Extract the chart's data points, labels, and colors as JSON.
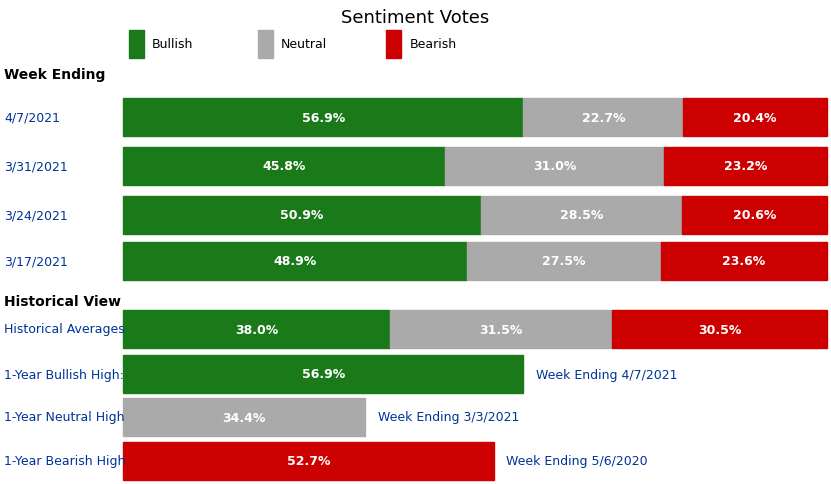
{
  "title": "Sentiment Votes",
  "colors": {
    "bullish": "#1a7a1a",
    "neutral": "#aaaaaa",
    "bearish": "#cc0000",
    "bar_text": "#ffffff",
    "blue": "#003399",
    "black": "#000000"
  },
  "weekly_rows": [
    {
      "label": "4/7/2021",
      "bullish": 56.9,
      "neutral": 22.7,
      "bearish": 20.4
    },
    {
      "label": "3/31/2021",
      "bullish": 45.8,
      "neutral": 31.0,
      "bearish": 23.2
    },
    {
      "label": "3/24/2021",
      "bullish": 50.9,
      "neutral": 28.5,
      "bearish": 20.6
    },
    {
      "label": "3/17/2021",
      "bullish": 48.9,
      "neutral": 27.5,
      "bearish": 23.6
    }
  ],
  "historical_rows": [
    {
      "label": "Historical Averages",
      "bullish": 38.0,
      "neutral": 31.5,
      "bearish": 30.5,
      "annotation": null
    },
    {
      "label": "1-Year Bullish High:",
      "bullish": 56.9,
      "neutral": 0.0,
      "bearish": 0.0,
      "annotation": "Week Ending 4/7/2021"
    },
    {
      "label": "1-Year Neutral High",
      "bullish": 0.0,
      "neutral": 34.4,
      "bearish": 0.0,
      "annotation": "Week Ending 3/3/2021"
    },
    {
      "label": "1-Year Bearish High",
      "bullish": 0.0,
      "neutral": 0.0,
      "bearish": 52.7,
      "annotation": "Week Ending 5/6/2020"
    }
  ]
}
